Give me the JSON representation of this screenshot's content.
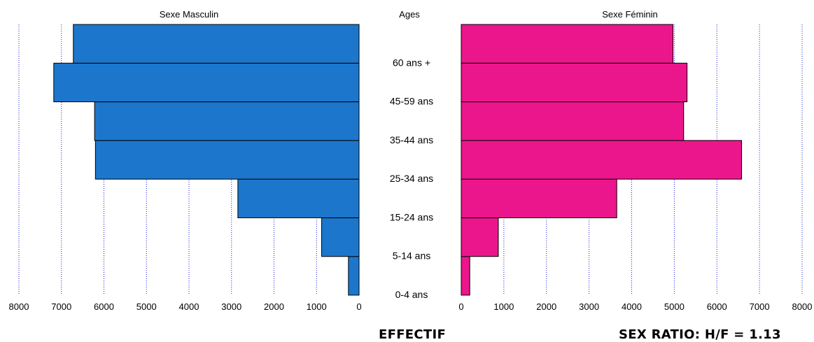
{
  "chart_data": {
    "type": "bar",
    "subtype": "population-pyramid",
    "center_header": "Ages",
    "categories": [
      "0-4 ans",
      "5-14 ans",
      "15-24 ans",
      "25-34 ans",
      "35-44 ans",
      "45-59 ans",
      "60 ans +"
    ],
    "series": [
      {
        "name": "Sexe Masculin",
        "color": "#1c77cc",
        "values": [
          250,
          880,
          2850,
          6200,
          6220,
          7180,
          6720
        ]
      },
      {
        "name": "Sexe Féminin",
        "color": "#ec168c",
        "values": [
          200,
          870,
          3650,
          6580,
          5220,
          5300,
          4970
        ]
      }
    ],
    "xlim": [
      0,
      8000
    ],
    "xticks": [
      0,
      1000,
      2000,
      3000,
      4000,
      5000,
      6000,
      7000,
      8000
    ],
    "grid": "dotted-vertical",
    "xlabel": "EFFECTIF",
    "annotation": "SEX RATIO: H/F = 1.13"
  }
}
